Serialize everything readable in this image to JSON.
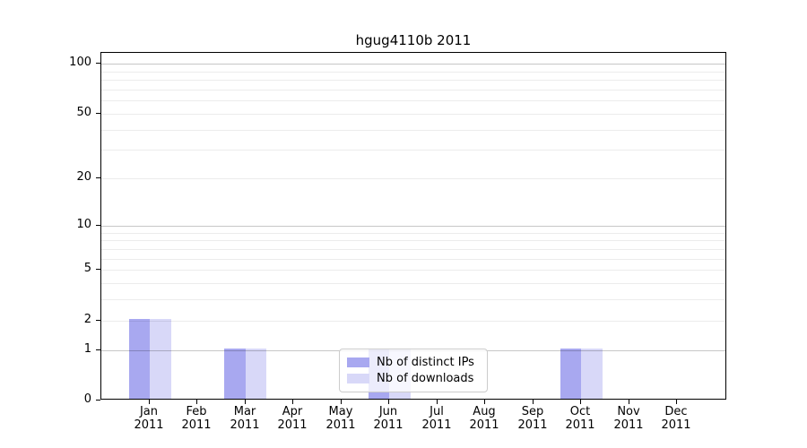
{
  "chart_data": {
    "type": "bar",
    "title": "hgug4110b 2011",
    "categories": [
      "Jan 2011",
      "Feb 2011",
      "Mar 2011",
      "Apr 2011",
      "May 2011",
      "Jun 2011",
      "Jul 2011",
      "Aug 2011",
      "Sep 2011",
      "Oct 2011",
      "Nov 2011",
      "Dec 2011"
    ],
    "series": [
      {
        "name": "Nb of distinct IPs",
        "color": "#a8a8f0",
        "values": [
          2,
          0,
          1,
          0,
          0,
          1,
          0,
          0,
          0,
          1,
          0,
          0
        ]
      },
      {
        "name": "Nb of downloads",
        "color": "#d8d8f8",
        "values": [
          2,
          0,
          1,
          0,
          0,
          1,
          0,
          0,
          0,
          1,
          0,
          0
        ]
      }
    ],
    "xlabel": "",
    "ylabel": "",
    "yscale": "log1p",
    "ylim": [
      0,
      117
    ],
    "yticks": [
      0,
      1,
      2,
      5,
      10,
      20,
      50,
      100
    ],
    "major_gridlines": [
      1,
      10,
      100
    ],
    "minor_gridlines": [
      2,
      3,
      4,
      5,
      6,
      7,
      8,
      9,
      20,
      30,
      40,
      50,
      60,
      70,
      80,
      90
    ],
    "grid": true,
    "legend_position": "lower center"
  },
  "colors": {
    "bar_distinct_ips": "#a8a8f0",
    "bar_downloads": "#d8d8f8",
    "axis": "#000000",
    "grid_major": "rgba(0,0,0,0.22)",
    "grid_minor": "rgba(0,0,0,0.075)",
    "legend_border": "#cccccc",
    "background": "#ffffff"
  }
}
